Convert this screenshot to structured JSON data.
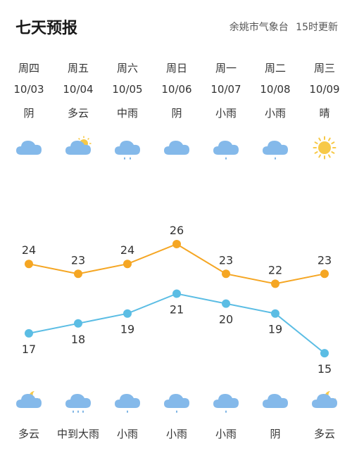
{
  "header": {
    "title": "七天预报",
    "source": "余姚市气象台",
    "update": "15时更新"
  },
  "days": [
    {
      "weekday": "周四",
      "date": "10/03",
      "day_cond": "阴",
      "day_icon": "cloud-icon",
      "night_icon": "cloud-moon-icon",
      "night_cond": "多云"
    },
    {
      "weekday": "周五",
      "date": "10/04",
      "day_cond": "多云",
      "day_icon": "cloud-sun-icon",
      "night_icon": "rain-heavy-icon",
      "night_cond": "中到大雨"
    },
    {
      "weekday": "周六",
      "date": "10/05",
      "day_cond": "中雨",
      "day_icon": "rain-moderate-icon",
      "night_icon": "rain-light-icon",
      "night_cond": "小雨"
    },
    {
      "weekday": "周日",
      "date": "10/06",
      "day_cond": "阴",
      "day_icon": "cloud-icon",
      "night_icon": "rain-light-icon",
      "night_cond": "小雨"
    },
    {
      "weekday": "周一",
      "date": "10/07",
      "day_cond": "小雨",
      "day_icon": "rain-light-icon",
      "night_icon": "rain-light-icon",
      "night_cond": "小雨"
    },
    {
      "weekday": "周二",
      "date": "10/08",
      "day_cond": "小雨",
      "day_icon": "rain-light-icon",
      "night_icon": "cloud-icon",
      "night_cond": "阴"
    },
    {
      "weekday": "周三",
      "date": "10/09",
      "day_cond": "晴",
      "day_icon": "sun-icon",
      "night_icon": "cloud-moon-icon",
      "night_cond": "多云"
    }
  ],
  "chart_data": {
    "type": "line",
    "x": [
      "10/03",
      "10/04",
      "10/05",
      "10/06",
      "10/07",
      "10/08",
      "10/09"
    ],
    "series": [
      {
        "values": [
          24,
          23,
          24,
          26,
          23,
          22,
          23
        ],
        "color": "#f5a623"
      },
      {
        "values": [
          17,
          18,
          19,
          21,
          20,
          19,
          15
        ],
        "color": "#5bbde4"
      }
    ]
  }
}
